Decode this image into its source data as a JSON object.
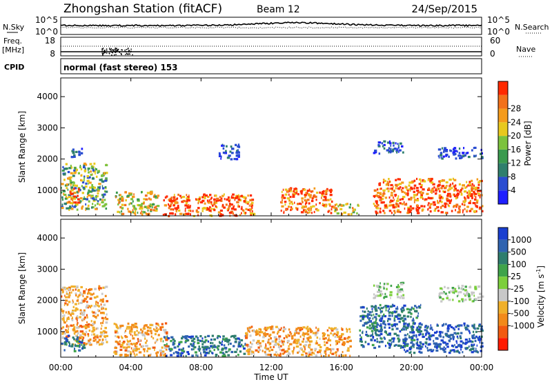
{
  "header": {
    "station": "Zhongshan Station (fitACF)",
    "beam": "Beam 12",
    "date": "24/Sep/2015"
  },
  "noise_panel": {
    "left_label": "N.Sky",
    "left_ticks": [
      "10^5",
      "10^0"
    ],
    "right_label": "N.Search",
    "right_ticks": [
      "10^5",
      "10^0"
    ]
  },
  "freq_panel": {
    "left_label_line1": "Freq.",
    "left_label_line2": "[MHz]",
    "left_ticks": [
      "18",
      "8"
    ],
    "right_label": "Nave",
    "right_ticks": [
      "60",
      "0"
    ]
  },
  "cpid_panel": {
    "label": "CPID",
    "text": "normal (fast stereo) 153"
  },
  "chart_data": [
    {
      "type": "heatmap",
      "name": "power",
      "ylabel": "Slant Range [km]",
      "y_ticks": [
        1000,
        2000,
        3000,
        4000
      ],
      "ylim": [
        180,
        4600
      ],
      "colorbar": {
        "label": "Power [dB]",
        "ticks": [
          "4",
          "8",
          "12",
          "16",
          "20",
          "24",
          "28"
        ],
        "colors": [
          "#1e1eff",
          "#2a4dd1",
          "#2f7f6d",
          "#3a9a4e",
          "#7cc23d",
          "#e8c81e",
          "#f59b1b",
          "#f2711a",
          "#ff2a00"
        ]
      },
      "regions": [
        {
          "t0": 0.0,
          "t1": 2.6,
          "r0": 400,
          "r1": 1900,
          "level": "mixed-low"
        },
        {
          "t0": 0.3,
          "t1": 1.0,
          "r0": 600,
          "r1": 1100,
          "level": "high"
        },
        {
          "t0": 3.0,
          "t1": 5.5,
          "r0": 250,
          "r1": 1000,
          "level": "medium"
        },
        {
          "t0": 5.8,
          "t1": 11.0,
          "r0": 200,
          "r1": 900,
          "level": "high"
        },
        {
          "t0": 12.5,
          "t1": 15.5,
          "r0": 300,
          "r1": 1100,
          "level": "high"
        },
        {
          "t0": 15.5,
          "t1": 17.0,
          "r0": 250,
          "r1": 600,
          "level": "medium"
        },
        {
          "t0": 17.8,
          "t1": 24.0,
          "r0": 300,
          "r1": 1400,
          "level": "high"
        },
        {
          "t0": 17.8,
          "t1": 19.5,
          "r0": 2200,
          "r1": 2600,
          "level": "low"
        },
        {
          "t0": 21.5,
          "t1": 24.0,
          "r0": 2050,
          "r1": 2400,
          "level": "low"
        },
        {
          "t0": 9.0,
          "t1": 10.2,
          "r0": 2000,
          "r1": 2500,
          "level": "low"
        },
        {
          "t0": 0.5,
          "t1": 1.2,
          "r0": 2100,
          "r1": 2400,
          "level": "low"
        }
      ]
    },
    {
      "type": "heatmap",
      "name": "velocity",
      "ylabel": "Slant Range [km]",
      "y_ticks": [
        1000,
        2000,
        3000,
        4000
      ],
      "ylim": [
        180,
        4600
      ],
      "colorbar": {
        "label": "Velocity [m s^-1]",
        "unit_text": "Velocity [m s",
        "unit_sup": "-1",
        "unit_close": "]",
        "ticks": [
          "1000",
          "500",
          "100",
          "25",
          "-25",
          "-100",
          "-500",
          "-1000"
        ],
        "colors": [
          "#1a3fd0",
          "#2f63b0",
          "#2e7d6e",
          "#3fa34a",
          "#7ccf3c",
          "#c8c8c8",
          "#f0b02a",
          "#f28a1a",
          "#f25a10",
          "#ff1a00"
        ]
      },
      "regions": [
        {
          "t0": 0.0,
          "t1": 2.6,
          "r0": 600,
          "r1": 2500,
          "level": "negative"
        },
        {
          "t0": 0.0,
          "t1": 1.3,
          "r0": 400,
          "r1": 900,
          "level": "positive"
        },
        {
          "t0": 5.8,
          "t1": 10.5,
          "r0": 250,
          "r1": 900,
          "level": "positive"
        },
        {
          "t0": 3.0,
          "t1": 6.0,
          "r0": 250,
          "r1": 1300,
          "level": "negative"
        },
        {
          "t0": 10.5,
          "t1": 16.5,
          "r0": 250,
          "r1": 1200,
          "level": "negative"
        },
        {
          "t0": 17.0,
          "t1": 20.5,
          "r0": 500,
          "r1": 1900,
          "level": "positive"
        },
        {
          "t0": 19.5,
          "t1": 24.0,
          "r0": 350,
          "r1": 1300,
          "level": "strong-positive"
        },
        {
          "t0": 17.8,
          "t1": 19.5,
          "r0": 2100,
          "r1": 2600,
          "level": "near-zero"
        },
        {
          "t0": 21.5,
          "t1": 24.0,
          "r0": 2000,
          "r1": 2500,
          "level": "near-zero"
        }
      ]
    }
  ],
  "x_axis": {
    "ticks": [
      "00:00",
      "04:00",
      "08:00",
      "12:00",
      "16:00",
      "20:00",
      "00:00"
    ],
    "label": "Time UT"
  }
}
